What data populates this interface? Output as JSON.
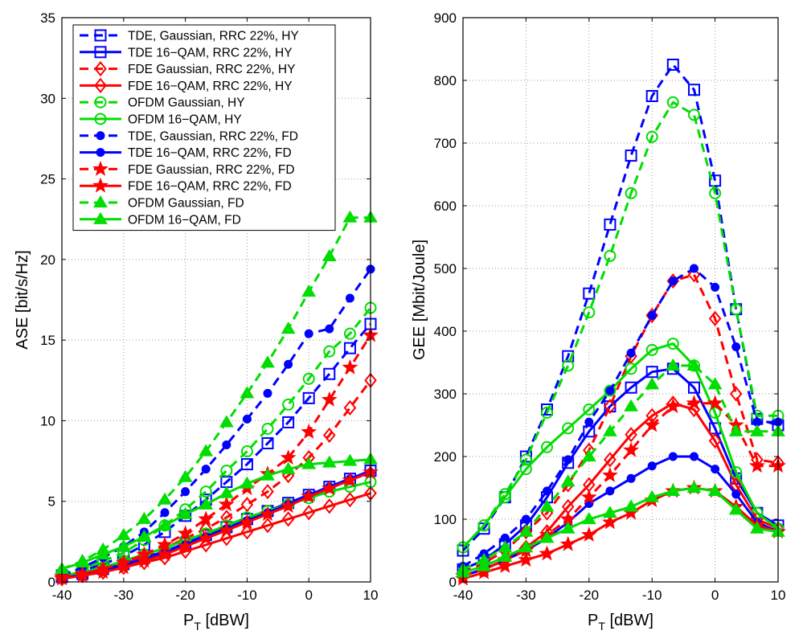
{
  "colors": {
    "blue": "#0000ff",
    "red": "#ff0000",
    "green": "#00dd00"
  },
  "chart_data": [
    {
      "type": "line",
      "xlabel": "P",
      "xlabel_sub": "T",
      "xlabel_unit": "[dBW]",
      "ylabel": "ASE [bit/s/Hz]",
      "xlim": [
        -40,
        10
      ],
      "ylim": [
        0,
        35
      ],
      "xticks": [
        -40,
        -30,
        -20,
        -10,
        0,
        10
      ],
      "yticks": [
        0,
        5,
        10,
        15,
        20,
        25,
        30,
        35
      ],
      "grid": true,
      "legend": "top-left",
      "x": [
        -40,
        -36.67,
        -33.33,
        -30,
        -26.67,
        -23.33,
        -20,
        -16.67,
        -13.33,
        -10,
        -6.67,
        -3.33,
        0,
        3.33,
        6.67,
        10
      ],
      "series": [
        {
          "name": "TDE, Gaussian, RRC 22%, HY",
          "color": "blue",
          "dash": true,
          "marker": "square",
          "values": [
            0.4,
            0.7,
            1.1,
            1.6,
            2.3,
            3.1,
            4.1,
            5.1,
            6.2,
            7.3,
            8.6,
            9.9,
            11.4,
            12.9,
            14.5,
            16.0
          ]
        },
        {
          "name": "TDE 16−QAM, RRC 22%, HY",
          "color": "blue",
          "dash": false,
          "marker": "square",
          "values": [
            0.3,
            0.5,
            0.8,
            1.1,
            1.5,
            1.9,
            2.4,
            2.9,
            3.4,
            3.9,
            4.4,
            4.9,
            5.4,
            5.9,
            6.4,
            6.9
          ]
        },
        {
          "name": "FDE Gaussian, RRC 22%, HY",
          "color": "red",
          "dash": true,
          "marker": "diamond",
          "values": [
            0.3,
            0.5,
            0.8,
            1.2,
            1.6,
            2.1,
            2.7,
            3.3,
            4.0,
            4.8,
            5.6,
            6.6,
            7.7,
            9.1,
            10.8,
            12.5
          ]
        },
        {
          "name": "FDE 16−QAM, RRC 22%, HY",
          "color": "red",
          "dash": false,
          "marker": "diamond",
          "values": [
            0.2,
            0.4,
            0.6,
            0.9,
            1.2,
            1.5,
            1.9,
            2.3,
            2.7,
            3.1,
            3.5,
            3.9,
            4.3,
            4.7,
            5.1,
            5.5
          ]
        },
        {
          "name": "OFDM Gaussian, HY",
          "color": "green",
          "dash": true,
          "marker": "circle",
          "values": [
            0.5,
            0.8,
            1.3,
            1.8,
            2.6,
            3.5,
            4.5,
            5.6,
            6.9,
            8.1,
            9.5,
            11.0,
            12.6,
            14.3,
            15.4,
            17.0
          ]
        },
        {
          "name": "OFDM 16−QAM, HY",
          "color": "green",
          "dash": false,
          "marker": "circle",
          "values": [
            0.4,
            0.6,
            0.9,
            1.3,
            1.7,
            2.1,
            2.6,
            3.0,
            3.5,
            4.0,
            4.4,
            4.8,
            5.2,
            5.6,
            5.9,
            6.2
          ]
        },
        {
          "name": "TDE, Gaussian, RRC 22%, FD",
          "color": "blue",
          "dash": true,
          "marker": "dot",
          "values": [
            0.4,
            0.9,
            1.5,
            2.2,
            3.1,
            4.3,
            5.6,
            7.0,
            8.5,
            10.1,
            11.7,
            13.5,
            15.4,
            15.7,
            17.6,
            19.4
          ]
        },
        {
          "name": "TDE 16−QAM, RRC 22%, FD",
          "color": "blue",
          "dash": false,
          "marker": "dot",
          "values": [
            0.2,
            0.4,
            0.7,
            1.0,
            1.4,
            1.8,
            2.3,
            2.8,
            3.3,
            3.8,
            4.3,
            4.8,
            5.4,
            5.9,
            6.4,
            6.8
          ]
        },
        {
          "name": "FDE Gaussian, RRC 22%, FD",
          "color": "red",
          "dash": true,
          "marker": "star",
          "values": [
            0.3,
            0.5,
            0.8,
            1.2,
            1.7,
            2.3,
            3.0,
            3.9,
            4.8,
            5.8,
            6.7,
            7.7,
            9.3,
            11.3,
            13.3,
            15.3
          ]
        },
        {
          "name": "FDE 16−QAM, RRC 22%, FD",
          "color": "red",
          "dash": false,
          "marker": "star",
          "values": [
            0.2,
            0.4,
            0.6,
            0.9,
            1.3,
            1.7,
            2.2,
            2.7,
            3.2,
            3.7,
            4.2,
            4.7,
            5.3,
            5.8,
            6.3,
            6.8
          ]
        },
        {
          "name": "OFDM Gaussian, FD",
          "color": "green",
          "dash": true,
          "marker": "triangle",
          "values": [
            0.8,
            1.3,
            2.0,
            2.9,
            3.9,
            5.1,
            6.5,
            8.1,
            9.9,
            11.7,
            13.6,
            15.7,
            18.0,
            20.2,
            22.6,
            22.6
          ]
        },
        {
          "name": "OFDM 16−QAM, FD",
          "color": "green",
          "dash": false,
          "marker": "triangle",
          "values": [
            0.8,
            1.2,
            1.7,
            2.2,
            2.8,
            3.5,
            4.2,
            4.8,
            5.5,
            6.1,
            6.6,
            7.0,
            7.3,
            7.4,
            7.5,
            7.6
          ]
        }
      ]
    },
    {
      "type": "line",
      "xlabel": "P",
      "xlabel_sub": "T",
      "xlabel_unit": "[dBW]",
      "ylabel": "GEE [Mbit/Joule]",
      "xlim": [
        -40,
        10
      ],
      "ylim": [
        0,
        900
      ],
      "xticks": [
        -40,
        -30,
        -20,
        -10,
        0,
        10
      ],
      "yticks": [
        0,
        100,
        200,
        300,
        400,
        500,
        600,
        700,
        800,
        900
      ],
      "grid": true,
      "x": [
        -40,
        -36.67,
        -33.33,
        -30,
        -26.67,
        -23.33,
        -20,
        -16.67,
        -13.33,
        -10,
        -6.67,
        -3.33,
        0,
        3.33,
        6.67,
        10
      ],
      "series": [
        {
          "name": "TDE, Gaussian, RRC 22%, HY",
          "color": "blue",
          "dash": true,
          "marker": "square",
          "values": [
            50,
            85,
            135,
            200,
            275,
            360,
            460,
            570,
            680,
            775,
            825,
            785,
            640,
            435,
            260,
            250
          ]
        },
        {
          "name": "TDE 16−QAM, RRC 22%, HY",
          "color": "blue",
          "dash": false,
          "marker": "square",
          "values": [
            20,
            35,
            60,
            90,
            135,
            190,
            240,
            280,
            310,
            335,
            340,
            310,
            245,
            165,
            110,
            90
          ]
        },
        {
          "name": "FDE Gaussian, RRC 22%, HY",
          "color": "red",
          "dash": true,
          "marker": "diamond",
          "values": [
            15,
            30,
            50,
            80,
            110,
            155,
            210,
            280,
            360,
            425,
            480,
            490,
            420,
            300,
            195,
            190
          ]
        },
        {
          "name": "FDE 16−QAM, RRC 22%, HY",
          "color": "red",
          "dash": false,
          "marker": "diamond",
          "values": [
            10,
            20,
            35,
            55,
            80,
            120,
            155,
            195,
            235,
            265,
            285,
            275,
            225,
            155,
            100,
            85
          ]
        },
        {
          "name": "OFDM Gaussian, HY",
          "color": "green",
          "dash": true,
          "marker": "circle",
          "values": [
            55,
            90,
            140,
            195,
            270,
            345,
            430,
            520,
            620,
            710,
            765,
            745,
            620,
            435,
            265,
            265
          ]
        },
        {
          "name": "OFDM 16−QAM, HY",
          "color": "green",
          "dash": false,
          "marker": "circle",
          "values": [
            55,
            90,
            135,
            180,
            215,
            245,
            275,
            305,
            340,
            370,
            380,
            345,
            270,
            175,
            110,
            85
          ]
        },
        {
          "name": "TDE, Gaussian, RRC 22%, FD",
          "color": "blue",
          "dash": true,
          "marker": "dot",
          "values": [
            25,
            45,
            70,
            100,
            145,
            195,
            255,
            305,
            365,
            425,
            480,
            500,
            470,
            375,
            255,
            255
          ]
        },
        {
          "name": "TDE 16−QAM, RRC 22%, FD",
          "color": "blue",
          "dash": false,
          "marker": "dot",
          "values": [
            10,
            20,
            35,
            50,
            70,
            95,
            125,
            145,
            165,
            185,
            200,
            200,
            180,
            140,
            95,
            80
          ]
        },
        {
          "name": "FDE Gaussian, RRC 22%, FD",
          "color": "red",
          "dash": true,
          "marker": "star",
          "values": [
            10,
            20,
            35,
            50,
            75,
            100,
            135,
            170,
            210,
            250,
            280,
            285,
            285,
            250,
            185,
            185
          ]
        },
        {
          "name": "FDE 16−QAM, RRC 22%, FD",
          "color": "red",
          "dash": false,
          "marker": "star",
          "values": [
            5,
            15,
            25,
            35,
            45,
            60,
            75,
            95,
            110,
            130,
            145,
            150,
            145,
            120,
            90,
            80
          ]
        },
        {
          "name": "OFDM Gaussian, FD",
          "color": "green",
          "dash": true,
          "marker": "triangle",
          "values": [
            20,
            35,
            55,
            80,
            120,
            160,
            200,
            240,
            280,
            315,
            345,
            345,
            315,
            240,
            240,
            240
          ]
        },
        {
          "name": "OFDM 16−QAM, FD",
          "color": "green",
          "dash": false,
          "marker": "triangle",
          "values": [
            15,
            25,
            40,
            55,
            70,
            85,
            100,
            110,
            120,
            135,
            145,
            150,
            145,
            115,
            85,
            80
          ]
        }
      ]
    }
  ]
}
